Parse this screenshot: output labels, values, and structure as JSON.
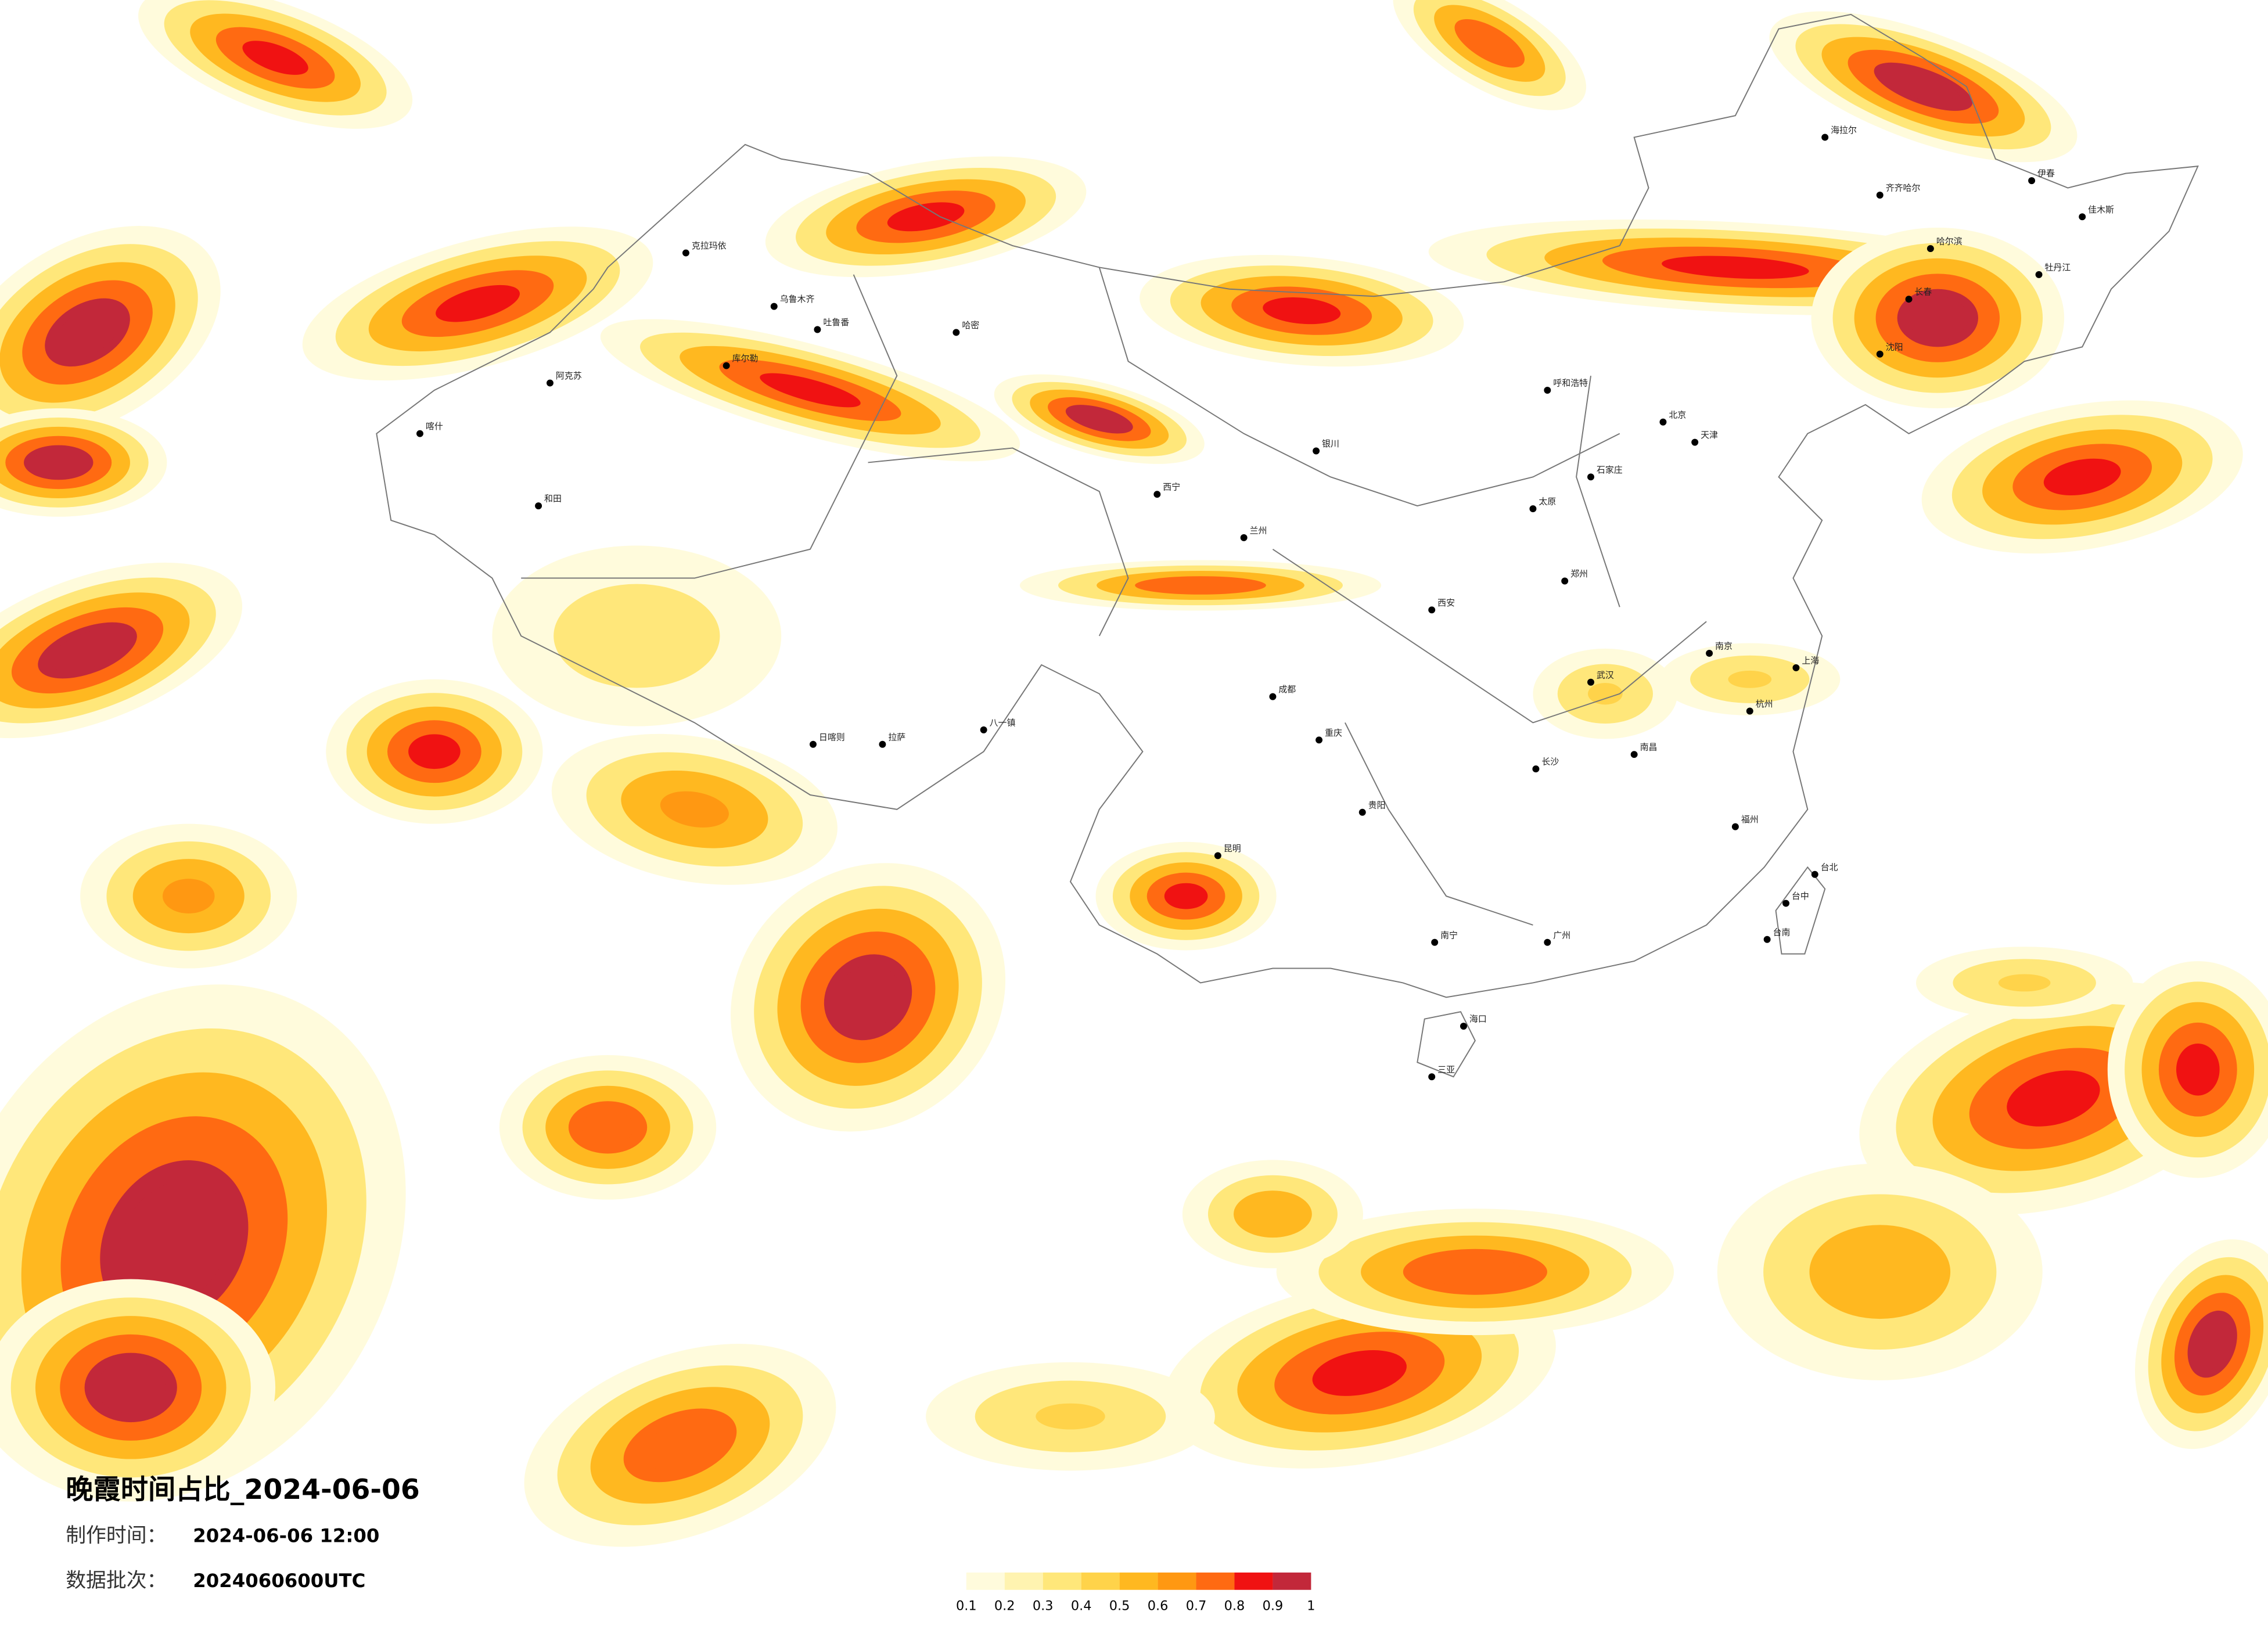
{
  "header": {
    "title": "晚霞时间占比_2024-06-06",
    "make_time": {
      "label": "制作时间：",
      "value": "2024-06-06 12:00"
    },
    "batch": {
      "label": "数据批次：",
      "value": "2024060600UTC"
    }
  },
  "legend": {
    "colors": [
      "#fffbdc",
      "#fff3b0",
      "#ffe77a",
      "#ffd34a",
      "#ffb820",
      "#ff9812",
      "#ff6a12",
      "#f01212",
      "#c2283a"
    ],
    "ticks": [
      "0.1",
      "0.2",
      "0.3",
      "0.4",
      "0.5",
      "0.6",
      "0.7",
      "0.8",
      "0.9",
      "1"
    ]
  },
  "cities": [
    "克拉玛依",
    "乌鲁木齐",
    "吐鲁番",
    "哈密",
    "库尔勒",
    "阿克苏",
    "喀什",
    "和田",
    "海拉尔",
    "齐齐哈尔",
    "哈尔滨",
    "长春",
    "沈阳",
    "北京",
    "天津",
    "石家庄",
    "太原",
    "呼和浩特",
    "银川",
    "兰州",
    "西宁",
    "拉萨",
    "日喀则",
    "八一镇",
    "成都",
    "重庆",
    "西安",
    "郑州",
    "武汉",
    "南京",
    "上海",
    "杭州",
    "长沙",
    "南昌",
    "福州",
    "广州",
    "南宁",
    "昆明",
    "贵阳",
    "海口",
    "台北",
    "台中",
    "台南",
    "三亚",
    "伊春",
    "佳木斯",
    "牡丹江"
  ]
}
